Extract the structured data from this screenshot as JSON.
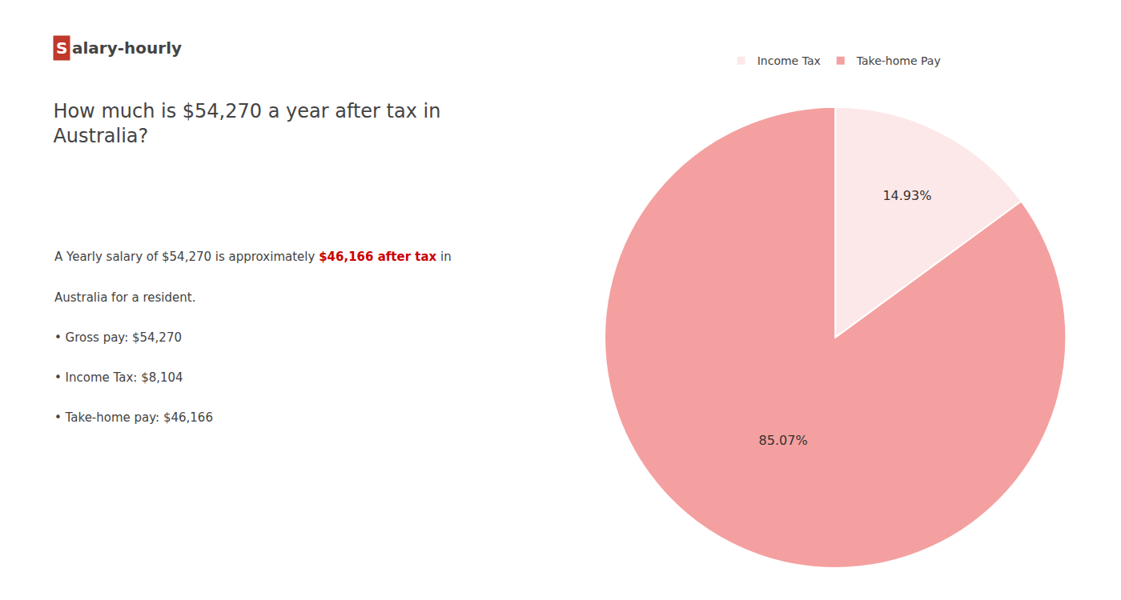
{
  "chart_data": {
    "type": "pie",
    "title": "How much is $54,270 a year after tax in\nAustralia?",
    "annotations": [
      [
        {
          "text": "S",
          "color": "#c0392b"
        },
        {
          "text": "alary-hourly"
        }
      ],
      [
        {
          "text": "A Yearly salary of $54,270 is approximately "
        },
        {
          "text": "$46,166 after tax",
          "color": "#cc0000"
        },
        {
          "text": " in"
        }
      ],
      [
        {
          "text": "Australia for a resident."
        }
      ],
      [
        {
          "text": "• Gross pay: $54,270"
        }
      ],
      [
        {
          "text": "• Income Tax: $8,104"
        }
      ],
      [
        {
          "text": "• Take-home pay: $46,166"
        }
      ]
    ],
    "categories": [
      "Income Tax",
      "Take-home Pay"
    ],
    "values": [
      14.93,
      85.07
    ],
    "value_labels": [
      "14.93%",
      "85.07%"
    ],
    "data_labels": true,
    "colors": [
      "#fce8e8",
      "#f4a0a0"
    ],
    "legend": "top"
  }
}
